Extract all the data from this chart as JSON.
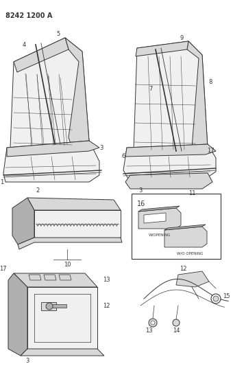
{
  "title_text": "8242 1200 A",
  "bg_color": "#ffffff",
  "line_color": "#333333",
  "fill_light": "#f0f0f0",
  "fill_mid": "#d8d8d8",
  "fill_dark": "#b0b0b0",
  "fig_width": 3.4,
  "fig_height": 5.33,
  "dpi": 100
}
